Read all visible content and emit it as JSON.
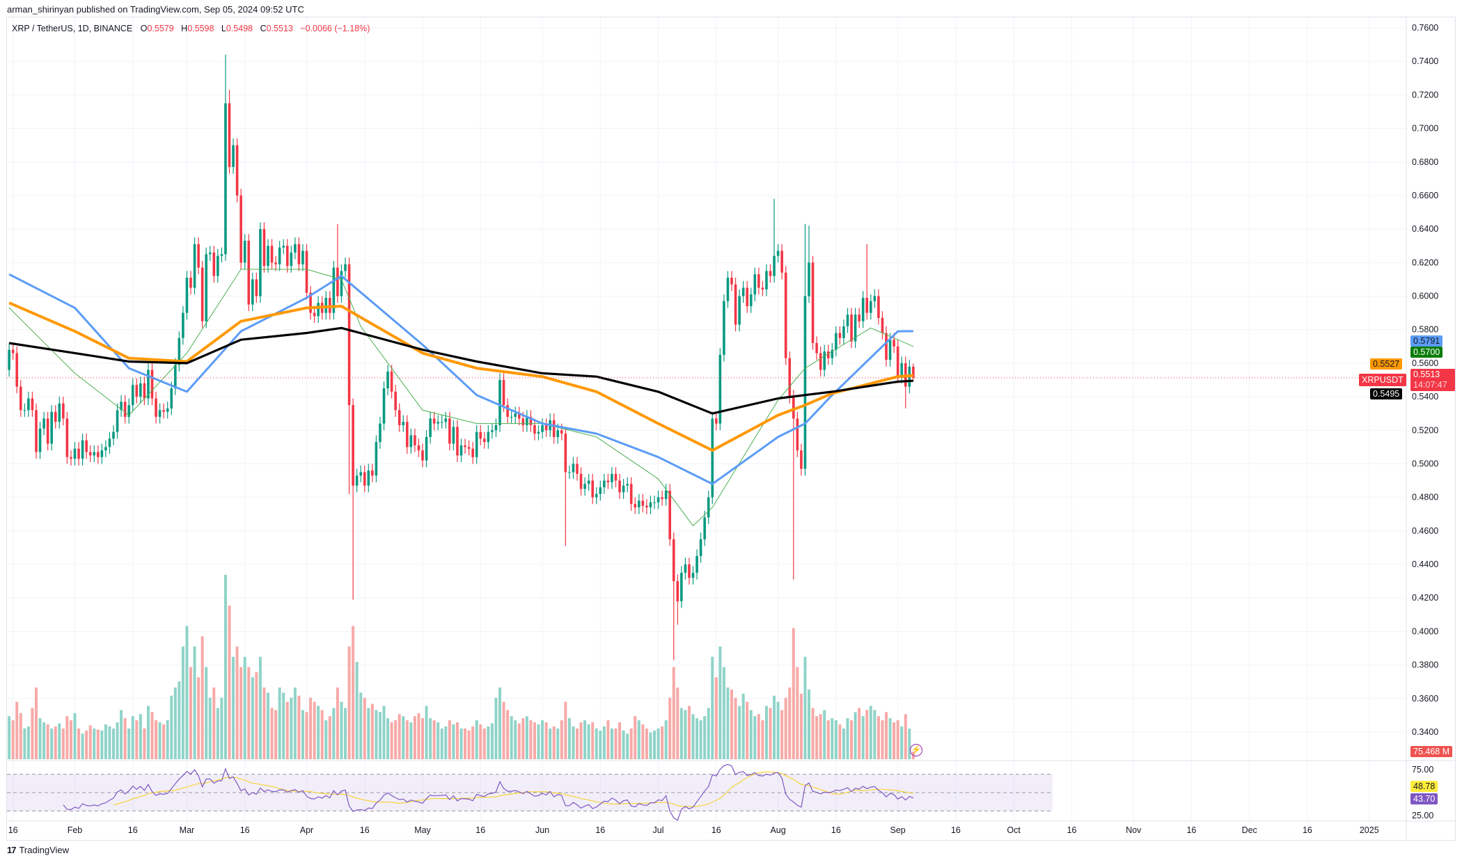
{
  "header": {
    "published": "arman_shirinyan published on TradingView.com, Sep 05, 2024 09:52 UTC"
  },
  "legend": {
    "symbol": "XRP / TetherUS, 1D, BINANCE",
    "open_label": "O",
    "open": "0.5579",
    "high_label": "H",
    "high": "0.5598",
    "low_label": "L",
    "low": "0.5498",
    "close_label": "C",
    "close": "0.5513",
    "change": "−0.0066 (−1.18%)"
  },
  "badges": {
    "ma_blue": "0.5791",
    "ma_green": "0.5700",
    "ma_orange": "0.5527",
    "symbol_tag": "XRPUSDT",
    "last_price": "0.5513",
    "countdown": "14:07:47",
    "ma_black": "0.5495",
    "volume": "75.468 M",
    "rsi_ma": "48.78",
    "rsi": "43.70"
  },
  "footer": {
    "logo": "17",
    "brand": "TradingView"
  },
  "colors": {
    "up": "#089981",
    "down": "#f23645",
    "volume_up": "#8fd3c8",
    "volume_down": "#f7a9a7",
    "ma_green": "#4caf50",
    "ma_blue": "#5b9cf6",
    "ma_orange": "#ff9800",
    "ma_black": "#000000",
    "rsi": "#7e57c2",
    "rsi_ma": "#f5d33b",
    "last_price": "#f23645"
  },
  "icons": {
    "alert": "lightning-icon"
  },
  "chart_data": {
    "type": "candlestick",
    "interval": "1D",
    "start_date": "2024-01-15",
    "ylim": [
      0.34,
      0.76
    ],
    "y_ticks": [
      "0.7600",
      "0.7400",
      "0.7200",
      "0.7000",
      "0.6800",
      "0.6600",
      "0.6400",
      "0.6200",
      "0.6000",
      "0.5800",
      "0.5600",
      "0.5400",
      "0.5200",
      "0.5000",
      "0.4800",
      "0.4600",
      "0.4400",
      "0.4200",
      "0.4000",
      "0.3800",
      "0.3600",
      "0.3400"
    ],
    "x_ticks": [
      {
        "label": "16",
        "date": "2024-01-16"
      },
      {
        "label": "Feb",
        "date": "2024-02-01"
      },
      {
        "label": "16",
        "date": "2024-02-16"
      },
      {
        "label": "Mar",
        "date": "2024-03-01"
      },
      {
        "label": "16",
        "date": "2024-03-16"
      },
      {
        "label": "Apr",
        "date": "2024-04-01"
      },
      {
        "label": "16",
        "date": "2024-04-16"
      },
      {
        "label": "May",
        "date": "2024-05-01"
      },
      {
        "label": "16",
        "date": "2024-05-16"
      },
      {
        "label": "Jun",
        "date": "2024-06-01"
      },
      {
        "label": "16",
        "date": "2024-06-16"
      },
      {
        "label": "Jul",
        "date": "2024-07-01"
      },
      {
        "label": "16",
        "date": "2024-07-16"
      },
      {
        "label": "Aug",
        "date": "2024-08-01"
      },
      {
        "label": "16",
        "date": "2024-08-16"
      },
      {
        "label": "Sep",
        "date": "2024-09-01"
      },
      {
        "label": "16",
        "date": "2024-09-16"
      },
      {
        "label": "Oct",
        "date": "2024-10-01"
      },
      {
        "label": "16",
        "date": "2024-10-16"
      },
      {
        "label": "Nov",
        "date": "2024-11-01"
      },
      {
        "label": "16",
        "date": "2024-11-16"
      },
      {
        "label": "Dec",
        "date": "2024-12-01"
      },
      {
        "label": "16",
        "date": "2024-12-16"
      },
      {
        "label": "2025",
        "date": "2025-01-01"
      }
    ],
    "open_first": 0.556,
    "close": [
      0.568,
      0.566,
      0.546,
      0.532,
      0.532,
      0.539,
      0.532,
      0.507,
      0.521,
      0.527,
      0.512,
      0.531,
      0.525,
      0.536,
      0.527,
      0.504,
      0.503,
      0.509,
      0.503,
      0.514,
      0.507,
      0.505,
      0.507,
      0.504,
      0.508,
      0.51,
      0.515,
      0.519,
      0.532,
      0.537,
      0.528,
      0.535,
      0.547,
      0.54,
      0.548,
      0.539,
      0.556,
      0.539,
      0.528,
      0.532,
      0.531,
      0.533,
      0.545,
      0.559,
      0.575,
      0.59,
      0.611,
      0.605,
      0.631,
      0.617,
      0.585,
      0.625,
      0.626,
      0.612,
      0.624,
      0.625,
      0.715,
      0.677,
      0.69,
      0.66,
      0.62,
      0.633,
      0.595,
      0.61,
      0.6,
      0.64,
      0.618,
      0.63,
      0.62,
      0.619,
      0.629,
      0.63,
      0.618,
      0.626,
      0.631,
      0.619,
      0.627,
      0.602,
      0.59,
      0.588,
      0.596,
      0.59,
      0.599,
      0.59,
      0.617,
      0.6,
      0.615,
      0.619,
      0.535,
      0.487,
      0.493,
      0.495,
      0.487,
      0.496,
      0.493,
      0.513,
      0.524,
      0.545,
      0.555,
      0.543,
      0.532,
      0.523,
      0.525,
      0.51,
      0.517,
      0.511,
      0.508,
      0.502,
      0.516,
      0.527,
      0.524,
      0.525,
      0.525,
      0.527,
      0.512,
      0.522,
      0.505,
      0.511,
      0.51,
      0.509,
      0.504,
      0.519,
      0.515,
      0.513,
      0.519,
      0.52,
      0.523,
      0.55,
      0.535,
      0.528,
      0.528,
      0.53,
      0.527,
      0.523,
      0.528,
      0.523,
      0.518,
      0.519,
      0.523,
      0.52,
      0.526,
      0.516,
      0.52,
      0.518,
      0.495,
      0.495,
      0.5,
      0.494,
      0.485,
      0.488,
      0.49,
      0.48,
      0.482,
      0.486,
      0.49,
      0.489,
      0.494,
      0.49,
      0.483,
      0.487,
      0.488,
      0.476,
      0.474,
      0.478,
      0.475,
      0.474,
      0.477,
      0.477,
      0.48,
      0.479,
      0.484,
      0.455,
      0.43,
      0.418,
      0.435,
      0.44,
      0.432,
      0.435,
      0.445,
      0.455,
      0.468,
      0.48,
      0.527,
      0.524,
      0.565,
      0.597,
      0.611,
      0.607,
      0.583,
      0.6,
      0.605,
      0.594,
      0.601,
      0.613,
      0.605,
      0.604,
      0.615,
      0.612,
      0.624,
      0.627,
      0.614,
      0.563,
      0.54,
      0.527,
      0.508,
      0.497,
      0.6,
      0.62,
      0.572,
      0.566,
      0.556,
      0.567,
      0.563,
      0.568,
      0.578,
      0.575,
      0.582,
      0.589,
      0.573,
      0.589,
      0.585,
      0.599,
      0.59,
      0.597,
      0.6,
      0.587,
      0.578,
      0.562,
      0.574,
      0.57,
      0.552,
      0.56,
      0.546,
      0.5579,
      0.5513
    ],
    "wick_extremes": [
      {
        "date": "2024-03-11",
        "high": 0.744
      },
      {
        "date": "2024-03-12",
        "high": 0.723
      },
      {
        "date": "2024-04-09",
        "high": 0.643
      },
      {
        "date": "2024-04-12",
        "low": 0.482
      },
      {
        "date": "2024-04-13",
        "low": 0.419
      },
      {
        "date": "2024-06-07",
        "low": 0.451
      },
      {
        "date": "2024-07-05",
        "low": 0.383
      },
      {
        "date": "2024-07-06",
        "low": 0.404
      },
      {
        "date": "2024-07-31",
        "high": 0.658
      },
      {
        "date": "2024-08-05",
        "low": 0.431
      },
      {
        "date": "2024-08-08",
        "high": 0.643
      },
      {
        "date": "2024-08-09",
        "high": 0.642
      },
      {
        "date": "2024-08-24",
        "high": 0.631
      },
      {
        "date": "2024-09-03",
        "low": 0.533
      },
      {
        "date": "2024-09-05",
        "high": 0.5598,
        "low": 0.5498
      }
    ],
    "volume_millions": [
      420,
      380,
      560,
      450,
      300,
      320,
      500,
      700,
      400,
      360,
      340,
      300,
      320,
      350,
      300,
      420,
      380,
      450,
      300,
      250,
      280,
      330,
      300,
      290,
      280,
      340,
      320,
      300,
      360,
      480,
      400,
      300,
      420,
      380,
      440,
      300,
      520,
      460,
      380,
      360,
      340,
      380,
      620,
      700,
      760,
      1100,
      1300,
      900,
      1100,
      800,
      1200,
      900,
      600,
      700,
      500,
      600,
      1800,
      1500,
      1000,
      1100,
      900,
      1000,
      900,
      800,
      850,
      1000,
      700,
      650,
      500,
      480,
      700,
      650,
      560,
      600,
      700,
      620,
      480,
      460,
      600,
      560,
      520,
      480,
      380,
      420,
      500,
      700,
      560,
      500,
      1100,
      1300,
      950,
      650,
      600,
      500,
      540,
      480,
      460,
      520,
      400,
      360,
      380,
      440,
      420,
      380,
      360,
      420,
      450,
      400,
      520,
      400,
      380,
      360,
      300,
      320,
      380,
      340,
      360,
      300,
      300,
      280,
      320,
      380,
      340,
      300,
      320,
      350,
      600,
      700,
      560,
      480,
      420,
      380,
      350,
      400,
      420,
      380,
      360,
      340,
      380,
      360,
      300,
      320,
      300,
      380,
      560,
      400,
      320,
      300,
      360,
      380,
      340,
      360,
      300,
      280,
      320,
      380,
      300,
      300,
      360,
      280,
      250,
      300,
      420,
      380,
      340,
      300,
      260,
      280,
      300,
      320,
      380,
      600,
      900,
      700,
      500,
      480,
      520,
      440,
      400,
      380,
      420,
      500,
      1000,
      800,
      1100,
      900,
      700,
      680,
      600,
      520,
      640,
      560,
      480,
      420,
      440,
      380,
      520,
      500,
      620,
      560,
      480,
      600,
      700,
      1280,
      900,
      640,
      1000,
      680,
      500,
      420,
      440,
      480,
      380,
      400,
      380,
      340,
      300,
      400,
      380,
      460,
      500,
      420,
      480,
      520,
      480,
      420,
      380,
      460,
      400,
      360,
      380,
      320,
      440,
      300,
      75.468
    ],
    "moving_averages": [
      {
        "color_key": "ma_green",
        "points": [
          [
            "2024-01-15",
            0.593
          ],
          [
            "2024-02-01",
            0.554
          ],
          [
            "2024-02-15",
            0.529
          ],
          [
            "2024-03-01",
            0.566
          ],
          [
            "2024-03-15",
            0.616
          ],
          [
            "2024-04-01",
            0.616
          ],
          [
            "2024-04-10",
            0.61
          ],
          [
            "2024-04-15",
            0.582
          ],
          [
            "2024-05-01",
            0.532
          ],
          [
            "2024-05-15",
            0.524
          ],
          [
            "2024-06-01",
            0.524
          ],
          [
            "2024-06-15",
            0.516
          ],
          [
            "2024-07-01",
            0.491
          ],
          [
            "2024-07-10",
            0.463
          ],
          [
            "2024-07-15",
            0.474
          ],
          [
            "2024-08-01",
            0.538
          ],
          [
            "2024-08-08",
            0.557
          ],
          [
            "2024-08-15",
            0.567
          ],
          [
            "2024-08-25",
            0.581
          ],
          [
            "2024-09-05",
            0.57
          ]
        ]
      },
      {
        "color_key": "ma_blue",
        "points": [
          [
            "2024-01-15",
            0.613
          ],
          [
            "2024-02-01",
            0.593
          ],
          [
            "2024-02-15",
            0.557
          ],
          [
            "2024-03-01",
            0.543
          ],
          [
            "2024-03-15",
            0.579
          ],
          [
            "2024-04-01",
            0.599
          ],
          [
            "2024-04-10",
            0.612
          ],
          [
            "2024-05-01",
            0.571
          ],
          [
            "2024-05-15",
            0.541
          ],
          [
            "2024-06-01",
            0.524
          ],
          [
            "2024-06-15",
            0.518
          ],
          [
            "2024-07-01",
            0.504
          ],
          [
            "2024-07-15",
            0.488
          ],
          [
            "2024-08-01",
            0.516
          ],
          [
            "2024-08-08",
            0.524
          ],
          [
            "2024-08-15",
            0.541
          ],
          [
            "2024-09-01",
            0.579
          ],
          [
            "2024-09-05",
            0.5791
          ]
        ]
      },
      {
        "color_key": "ma_orange",
        "points": [
          [
            "2024-01-15",
            0.596
          ],
          [
            "2024-02-01",
            0.579
          ],
          [
            "2024-02-15",
            0.563
          ],
          [
            "2024-03-01",
            0.561
          ],
          [
            "2024-03-15",
            0.585
          ],
          [
            "2024-04-01",
            0.593
          ],
          [
            "2024-04-10",
            0.594
          ],
          [
            "2024-05-01",
            0.566
          ],
          [
            "2024-05-15",
            0.557
          ],
          [
            "2024-06-01",
            0.552
          ],
          [
            "2024-06-15",
            0.543
          ],
          [
            "2024-07-01",
            0.524
          ],
          [
            "2024-07-15",
            0.508
          ],
          [
            "2024-08-01",
            0.529
          ],
          [
            "2024-08-08",
            0.535
          ],
          [
            "2024-08-15",
            0.542
          ],
          [
            "2024-09-01",
            0.552
          ],
          [
            "2024-09-05",
            0.5527
          ]
        ]
      },
      {
        "color_key": "ma_black",
        "points": [
          [
            "2024-01-15",
            0.572
          ],
          [
            "2024-02-01",
            0.566
          ],
          [
            "2024-02-15",
            0.561
          ],
          [
            "2024-03-01",
            0.56
          ],
          [
            "2024-03-15",
            0.574
          ],
          [
            "2024-04-01",
            0.578
          ],
          [
            "2024-04-10",
            0.581
          ],
          [
            "2024-05-01",
            0.568
          ],
          [
            "2024-05-15",
            0.561
          ],
          [
            "2024-06-01",
            0.554
          ],
          [
            "2024-06-15",
            0.552
          ],
          [
            "2024-07-01",
            0.543
          ],
          [
            "2024-07-15",
            0.53
          ],
          [
            "2024-08-01",
            0.539
          ],
          [
            "2024-08-08",
            0.541
          ],
          [
            "2024-08-15",
            0.543
          ],
          [
            "2024-09-01",
            0.549
          ],
          [
            "2024-09-05",
            0.5495
          ]
        ]
      }
    ],
    "rsi": {
      "period": 14,
      "ma_period": 14,
      "upper": 70,
      "lower": 30,
      "mid": 50,
      "axis_ticks": [
        "75.00",
        "25.00"
      ]
    }
  }
}
